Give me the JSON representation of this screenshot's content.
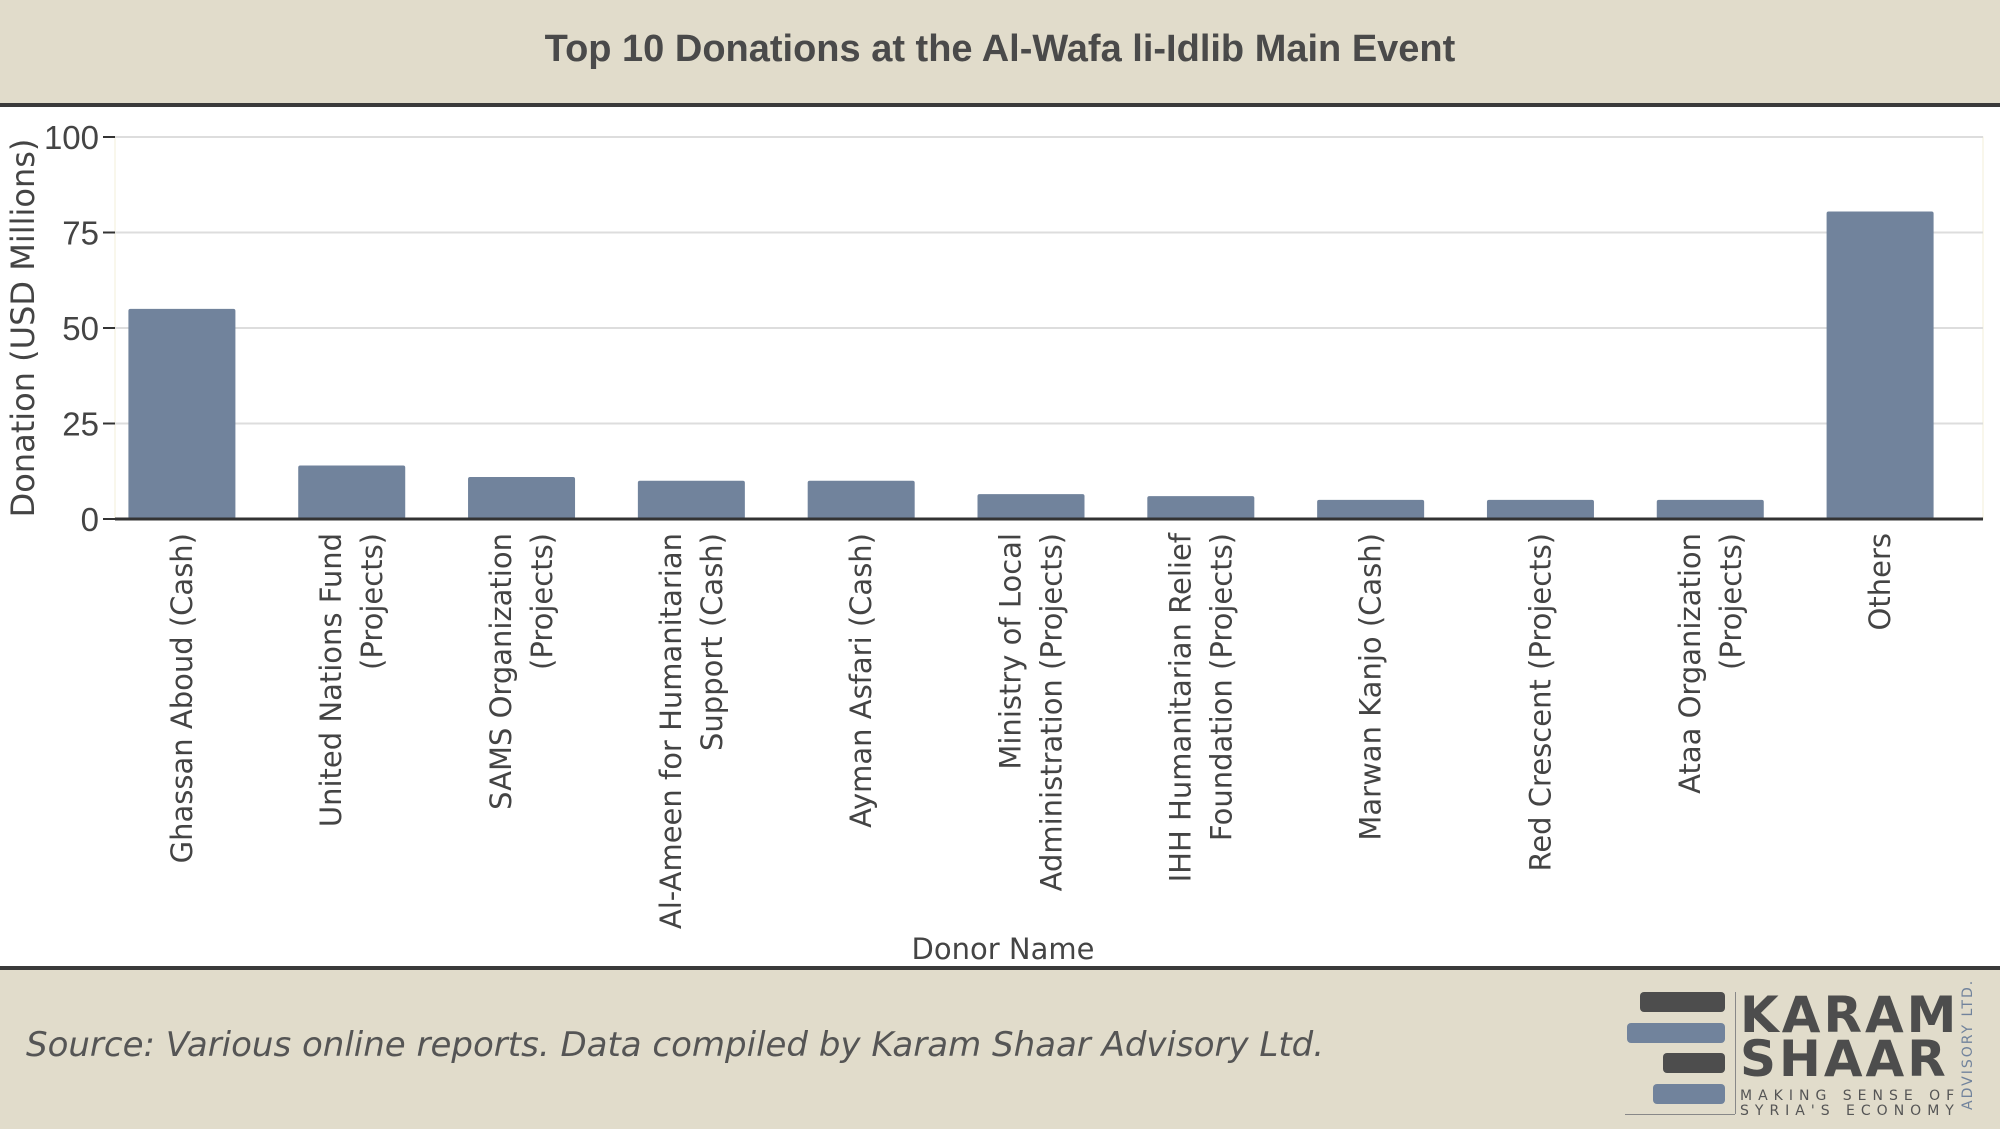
{
  "title": "Top 10 Donations at the Al-Wafa li-Idlib Main Event",
  "footer": {
    "source": "Source: Various online reports. Data compiled by Karam Shaar Advisory Ltd.",
    "logo": {
      "line1": "KARAM",
      "line2": "SHAAR",
      "tagline1": "MAKING SENSE OF",
      "tagline2": "SYRIA'S ECONOMY",
      "side": "ADVISORY LTD."
    }
  },
  "colors": {
    "bar": "#71839c",
    "banner": "#e1dccb",
    "dark": "#3a3a3a",
    "grid": "#dddddd"
  },
  "chart_data": {
    "type": "bar",
    "title": "Top 10 Donations at the Al-Wafa li-Idlib Main Event",
    "xlabel": "Donor Name",
    "ylabel": "Donation (USD Millions)",
    "ylim": [
      0,
      100
    ],
    "yticks": [
      0,
      25,
      50,
      75,
      100
    ],
    "grid": true,
    "categories": [
      [
        "Ghassan Aboud (Cash)"
      ],
      [
        "United Nations Fund",
        "(Projects)"
      ],
      [
        "SAMS Organization",
        "(Projects)"
      ],
      [
        "Al-Ameen for Humanitarian",
        "Support (Cash)"
      ],
      [
        "Ayman Asfari (Cash)"
      ],
      [
        "Ministry of Local",
        "Administration (Projects)"
      ],
      [
        "IHH Humanitarian Relief",
        "Foundation (Projects)"
      ],
      [
        "Marwan Kanjo (Cash)"
      ],
      [
        "Red Crescent (Projects)"
      ],
      [
        "Ataa Organization",
        "(Projects)"
      ],
      [
        "Others"
      ]
    ],
    "values": [
      55,
      14,
      11,
      10,
      10,
      6.5,
      6,
      5,
      5,
      5,
      80.5
    ]
  }
}
